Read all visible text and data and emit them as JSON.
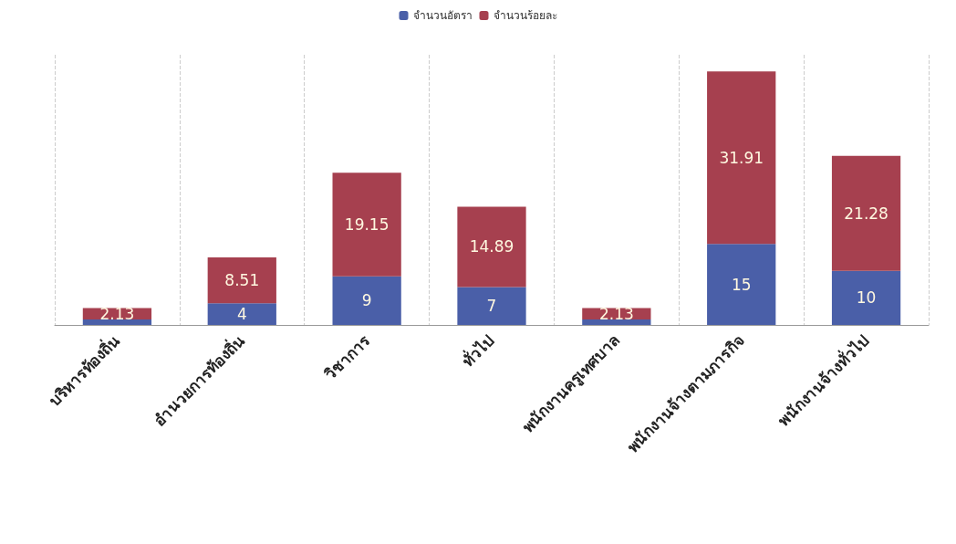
{
  "chart_data": {
    "type": "bar",
    "stacked": true,
    "categories": [
      "บริหารท้องถิ่น",
      "อำนวยการท้องถิ่น",
      "วิชาการ",
      "ทั่วไป",
      "พนักงานครูเทศบาล",
      "พนักงานจ้างตามภารกิจ",
      "พนักงานจ้างทั่วไป"
    ],
    "series": [
      {
        "name": "จำนวนอัตรา",
        "color": "#4a5fa8",
        "values": [
          1,
          4,
          9,
          7,
          1,
          15,
          10
        ],
        "value_labels": [
          null,
          "4",
          "9",
          "7",
          null,
          "15",
          "10"
        ]
      },
      {
        "name": "จำนวนร้อยละ",
        "color": "#a6404f",
        "values": [
          2.13,
          8.51,
          19.15,
          14.89,
          2.13,
          31.91,
          21.28
        ],
        "value_labels": [
          "2.13",
          "8.51",
          "19.15",
          "14.89",
          "2.13",
          "31.91",
          "21.28"
        ]
      }
    ],
    "legend": "top",
    "grid": "x",
    "tick_labels": "x"
  }
}
